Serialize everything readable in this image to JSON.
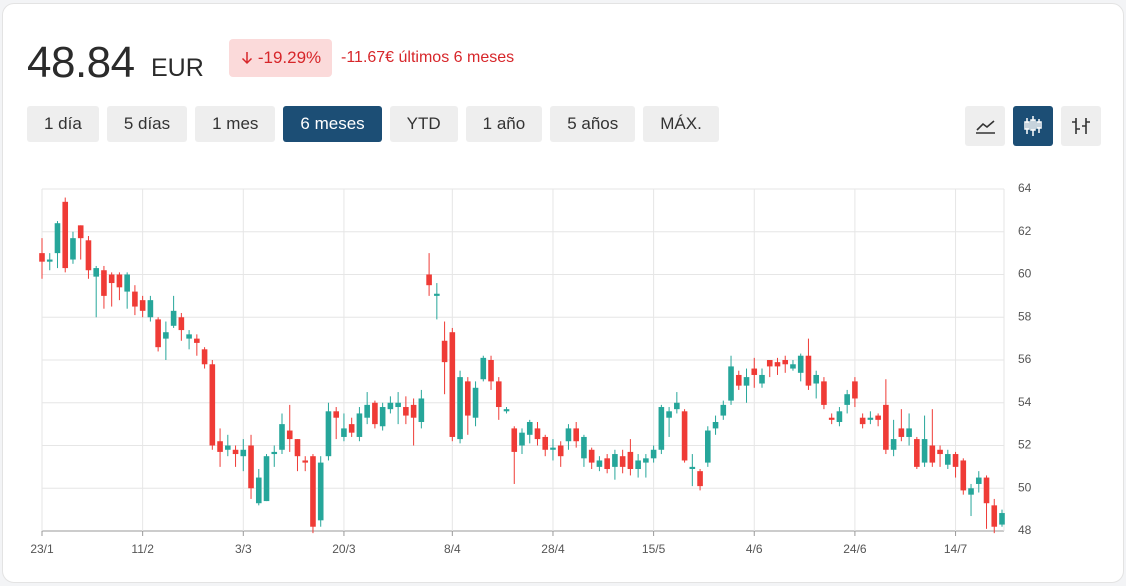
{
  "header": {
    "price": "48.84",
    "currency": "EUR",
    "change": "-19.29%",
    "period_change": "-11.67€ últimos 6 meses"
  },
  "ranges": [
    "1 día",
    "5 días",
    "1 mes",
    "6 meses",
    "YTD",
    "1 año",
    "5 años",
    "MÁX."
  ],
  "chart_data": {
    "type": "candlestick",
    "categories": [
      "23/1",
      null,
      null,
      null,
      null,
      null,
      null,
      null,
      null,
      null,
      null,
      null,
      null,
      "11/2",
      null,
      null,
      null,
      null,
      null,
      null,
      null,
      null,
      null,
      null,
      null,
      null,
      "3/3",
      null,
      null,
      null,
      null,
      null,
      null,
      null,
      null,
      null,
      null,
      null,
      null,
      "20/3",
      null,
      null,
      null,
      null,
      null,
      null,
      null,
      null,
      null,
      null,
      null,
      null,
      null,
      "8/4",
      null,
      null,
      null,
      null,
      null,
      null,
      null,
      null,
      null,
      null,
      null,
      null,
      "28/4",
      null,
      null,
      null,
      null,
      null,
      null,
      null,
      null,
      null,
      null,
      null,
      null,
      "15/5",
      null,
      null,
      null,
      null,
      null,
      null,
      null,
      null,
      null,
      null,
      null,
      null,
      "4/6",
      null,
      null,
      null,
      null,
      null,
      null,
      null,
      null,
      null,
      null,
      null,
      null,
      "24/6",
      null,
      null,
      null,
      null,
      null,
      null,
      null,
      null,
      null,
      null,
      null,
      null,
      "14/7",
      null,
      null,
      null,
      null,
      null,
      null
    ],
    "open": [
      61,
      60.6,
      61,
      63.4,
      60.7,
      62.3,
      61.6,
      59.9,
      60.2,
      60,
      60,
      59.2,
      59.2,
      58.8,
      58,
      57.9,
      57,
      57.6,
      58,
      57,
      57,
      56.5,
      55.8,
      52.2,
      51.8,
      51.8,
      51.5,
      52,
      49.3,
      49.4,
      51.6,
      51.8,
      52.7,
      52.3,
      51.3,
      51.5,
      48.5,
      51.5,
      53.6,
      52.4,
      53,
      52.4,
      53.3,
      54,
      52.9,
      53.7,
      53.8,
      53.8,
      53.9,
      53.1,
      60,
      59,
      56.9,
      57.3,
      52.3,
      55,
      53.3,
      55.1,
      56,
      55,
      53.6,
      52.8,
      52,
      52.5,
      52.8,
      52.4,
      51.8,
      52,
      52.2,
      52.8,
      51.4,
      51.8,
      51,
      51.4,
      51,
      51.5,
      51.7,
      50.9,
      51.2,
      51.4,
      51.8,
      53.3,
      53.7,
      53.6,
      50.9,
      50.8,
      51.2,
      52.8,
      53.4,
      54.1,
      55.3,
      54.8,
      55.6,
      54.9,
      56,
      55.9,
      56,
      55.6,
      55.4,
      56.2,
      54.9,
      55,
      53.3,
      53.1,
      53.9,
      55,
      53.3,
      53.2,
      53.4,
      53.9,
      51.8,
      52.8,
      52.4,
      52.3,
      51.2,
      52,
      51.8,
      51.1,
      51.6,
      51.3,
      49.7,
      50.2,
      50.5,
      49.2,
      48.3
    ],
    "high": [
      61.7,
      61,
      62.5,
      63.6,
      62,
      62.3,
      61.8,
      60.4,
      60.4,
      60.1,
      60.1,
      60.1,
      59.5,
      59,
      59,
      58,
      57.8,
      59,
      58.2,
      57.4,
      57.2,
      56.6,
      56,
      52.8,
      52.5,
      52,
      52.3,
      52.5,
      50.9,
      51.6,
      52,
      53.5,
      53.9,
      52.3,
      51.5,
      51.6,
      51.5,
      54,
      53.8,
      53.5,
      53.3,
      53.8,
      54.5,
      54.1,
      54,
      54.3,
      54.5,
      54.3,
      54.2,
      54.6,
      61,
      59.6,
      57.8,
      57.5,
      55.5,
      55.2,
      55,
      56.2,
      56.2,
      55.2,
      53.8,
      52.9,
      52.8,
      53.2,
      53.1,
      52.5,
      52.3,
      52.2,
      53,
      53.1,
      52.5,
      51.9,
      51.5,
      51.6,
      51.8,
      51.8,
      52.3,
      51.6,
      51.6,
      52,
      53.9,
      53.8,
      54.5,
      53.7,
      51.6,
      50.9,
      52.9,
      53.4,
      54.1,
      56.2,
      55.5,
      55.6,
      56.1,
      55.6,
      56,
      56.1,
      56.2,
      56,
      56.3,
      57,
      55.5,
      55.2,
      53.5,
      53.8,
      54.6,
      55.2,
      53.5,
      53.6,
      53.5,
      55.1,
      53.2,
      53.7,
      53.5,
      52.4,
      53.4,
      53.7,
      52,
      51.8,
      51.7,
      51.4,
      50.2,
      50.8,
      50.6,
      49.5,
      49
    ],
    "low": [
      59.8,
      60.2,
      60.3,
      60.1,
      60.5,
      60.7,
      59.8,
      58,
      58.4,
      58.5,
      58.8,
      58.4,
      58.1,
      58,
      57.8,
      56.4,
      56,
      57.5,
      56.9,
      56.5,
      56.2,
      55.6,
      51.8,
      51,
      51.5,
      51,
      50.8,
      49.5,
      49.2,
      49.4,
      51,
      51.6,
      51.7,
      50.8,
      50.8,
      47.9,
      48.2,
      51.3,
      52.3,
      52.2,
      52.4,
      52.2,
      53,
      52.8,
      52.7,
      53.5,
      53,
      53,
      52,
      52.8,
      59,
      57.9,
      54.4,
      52.2,
      52.1,
      52.5,
      52.9,
      55,
      54.6,
      53.2,
      53.5,
      50.2,
      51.6,
      52.1,
      52,
      51.5,
      51.3,
      51,
      51.8,
      51.9,
      51,
      50.9,
      50.8,
      50.7,
      50.4,
      50.7,
      50.6,
      50.5,
      50.5,
      51.2,
      51.6,
      52.4,
      53.5,
      51.2,
      50.1,
      49.9,
      51,
      52.5,
      53.2,
      53.9,
      54.6,
      54,
      54.7,
      54.7,
      55.2,
      55.3,
      55.4,
      55.5,
      55,
      54.6,
      54.2,
      53.7,
      53,
      52.9,
      53.5,
      53.8,
      52.8,
      53,
      52.9,
      51.6,
      51.5,
      52.2,
      52,
      50.9,
      51,
      51,
      51,
      50.9,
      50.5,
      49.7,
      48.7,
      49.8,
      48.1,
      47.9,
      48.2
    ],
    "close": [
      60.6,
      60.7,
      62.4,
      60.3,
      61.7,
      61.7,
      60.2,
      60.3,
      59,
      59.6,
      59.4,
      60,
      58.5,
      58.3,
      58.8,
      56.6,
      57.3,
      58.3,
      57.4,
      57.2,
      56.8,
      55.8,
      52,
      51.7,
      52,
      51.6,
      51.8,
      50,
      50.5,
      51.5,
      51.7,
      53,
      52.3,
      51.5,
      51.2,
      48.2,
      51.2,
      53.6,
      53.3,
      52.8,
      52.6,
      53.5,
      53.9,
      53,
      53.8,
      54,
      54,
      53.4,
      53.3,
      54.2,
      59.5,
      59.1,
      55.9,
      52.4,
      55.2,
      53.4,
      54.7,
      56.1,
      55,
      53.8,
      53.7,
      51.7,
      52.6,
      53.1,
      52.3,
      51.8,
      51.9,
      51.5,
      52.8,
      52.2,
      52.4,
      51.2,
      51.3,
      50.9,
      51.6,
      51,
      50.9,
      51.3,
      51.4,
      51.8,
      53.8,
      53.6,
      54,
      51.3,
      51,
      50.1,
      52.7,
      53.1,
      53.9,
      55.7,
      54.8,
      55.2,
      55.3,
      55.3,
      55.7,
      55.7,
      55.8,
      55.8,
      56.2,
      54.8,
      55.3,
      53.9,
      53.2,
      53.6,
      54.4,
      54.2,
      53,
      53.3,
      53.2,
      51.8,
      52.3,
      52.4,
      52.8,
      51,
      52.3,
      51.2,
      51.6,
      51.6,
      51,
      49.9,
      50,
      50.5,
      49.3,
      48.2,
      48.84
    ],
    "up_color": "#26a69a",
    "down_color": "#ef3b36",
    "ylim": [
      48,
      64
    ],
    "yticks": [
      48,
      50,
      52,
      54,
      56,
      58,
      60,
      62,
      64
    ],
    "grid": true
  }
}
